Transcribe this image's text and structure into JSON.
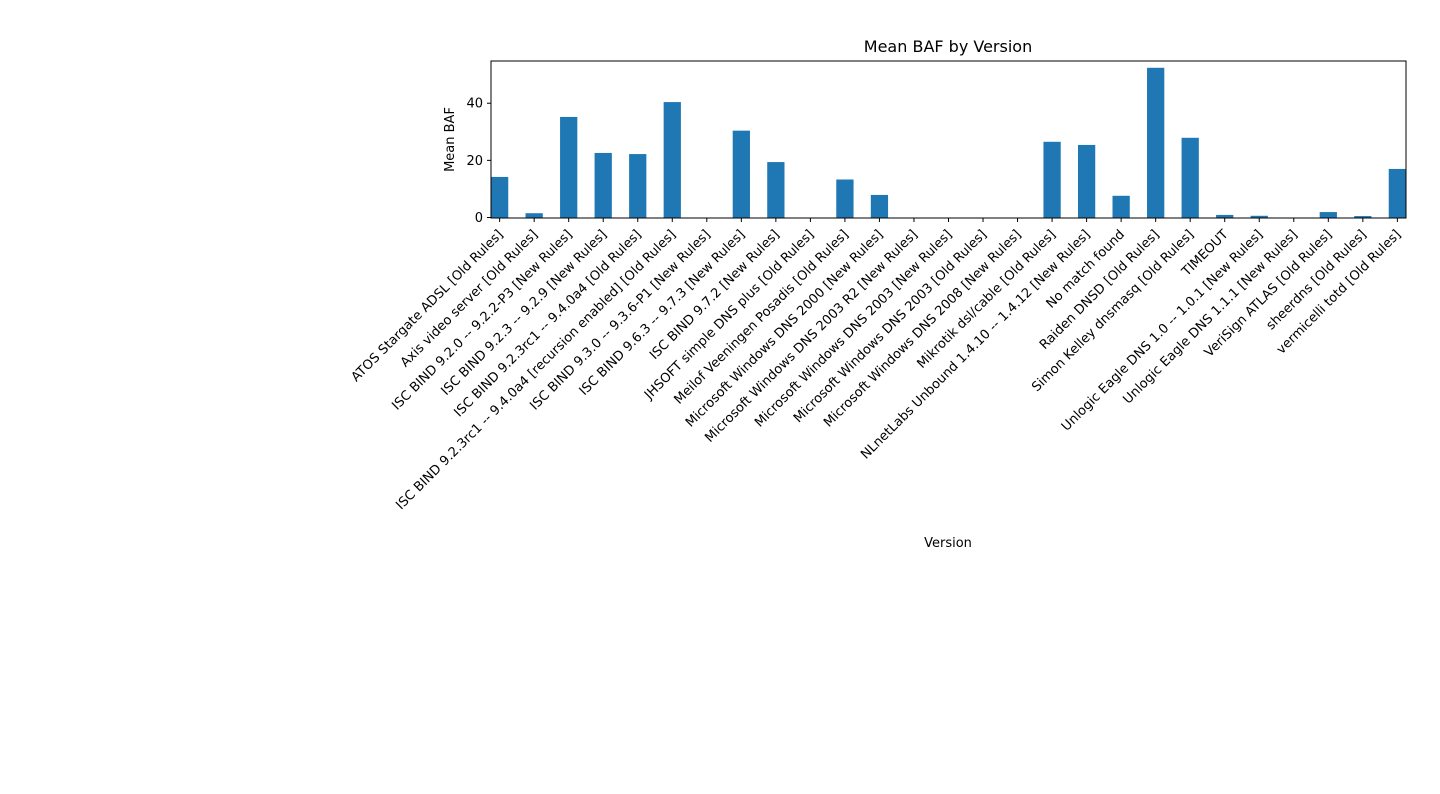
{
  "chart_data": {
    "type": "bar",
    "title": "Mean BAF by Version",
    "xlabel": "Version",
    "ylabel": "Mean BAF",
    "ylim": [
      0,
      55
    ],
    "yticks": [
      0,
      20,
      40
    ],
    "grid": false,
    "legend": "none",
    "bar_color": "#1f77b4",
    "categories": [
      "ATOS Stargate ADSL  [Old Rules]",
      "Axis video server  [Old Rules]",
      "ISC BIND 9.2.0 -- 9.2.2-P3 [New Rules]",
      "ISC BIND 9.2.3 -- 9.2.9 [New Rules]",
      "ISC BIND 9.2.3rc1 -- 9.4.0a4 [Old Rules]",
      "ISC BIND 9.2.3rc1 -- 9.4.0a4 [recursion enabled] [Old Rules]",
      "ISC BIND 9.3.0 -- 9.3.6-P1 [New Rules]",
      "ISC BIND 9.6.3 -- 9.7.3 [New Rules]",
      "ISC BIND 9.7.2 [New Rules]",
      "JHSOFT simple DNS plus  [Old Rules]",
      "Meilof Veeningen Posadis  [Old Rules]",
      "Microsoft Windows DNS 2000 [New Rules]",
      "Microsoft Windows DNS 2003 R2 [New Rules]",
      "Microsoft Windows DNS 2003 [New Rules]",
      "Microsoft Windows DNS 2003 [Old Rules]",
      "Microsoft Windows DNS 2008 [New Rules]",
      "Mikrotik dsl/cable  [Old Rules]",
      "NLnetLabs Unbound 1.4.10 -- 1.4.12 [New Rules]",
      "No match found",
      "Raiden DNSD  [Old Rules]",
      "Simon Kelley dnsmasq  [Old Rules]",
      "TIMEOUT",
      "Unlogic Eagle DNS 1.0 -- 1.0.1 [New Rules]",
      "Unlogic Eagle DNS 1.1.1 [New Rules]",
      "VeriSign ATLAS  [Old Rules]",
      "sheerdns  [Old Rules]",
      "vermicelli totd  [Old Rules]"
    ],
    "values": [
      14.2,
      1.5,
      35.2,
      22.6,
      22.2,
      40.4,
      0,
      30.4,
      19.4,
      0,
      13.3,
      7.9,
      0,
      0,
      0,
      0,
      26.5,
      25.4,
      7.6,
      52.4,
      27.9,
      0.9,
      0.6,
      0,
      1.9,
      0.5,
      17.0
    ]
  }
}
